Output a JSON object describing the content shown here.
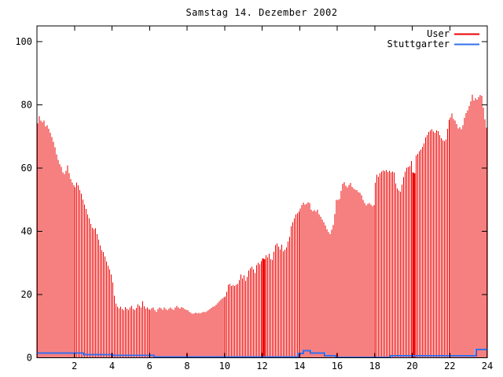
{
  "chart_data": {
    "type": "bar",
    "title": "Samstag 14. Dezember 2002",
    "xlabel": "",
    "ylabel": "",
    "xlim": [
      0,
      24
    ],
    "ylim": [
      0,
      105
    ],
    "x_ticks": [
      2,
      4,
      6,
      8,
      10,
      12,
      14,
      16,
      18,
      20,
      22,
      24
    ],
    "y_ticks": [
      0,
      20,
      40,
      60,
      80,
      100
    ],
    "grid": false,
    "legend_position": "top-right",
    "axis_color": "#000000",
    "series": [
      {
        "name": "User",
        "style": "impulses",
        "color": "#ee0000",
        "interval_minutes": 5,
        "values": [
          74.2,
          76.4,
          75.1,
          74.6,
          75.0,
          73.2,
          73.6,
          72.4,
          71.2,
          69.8,
          68.4,
          66.6,
          64.4,
          62.6,
          61.2,
          60.4,
          58.6,
          58.1,
          59.2,
          60.9,
          58.4,
          56.6,
          55.4,
          54.6,
          53.9,
          55.4,
          54.6,
          53.1,
          51.9,
          50.1,
          48.4,
          47.1,
          45.4,
          44.1,
          42.4,
          41.1,
          40.6,
          41.0,
          39.1,
          37.4,
          35.6,
          34.1,
          33.4,
          32.1,
          30.4,
          29.1,
          27.9,
          26.4,
          23.8,
          19.6,
          17.1,
          16.2,
          15.6,
          16.1,
          15.4,
          15.0,
          16.0,
          15.5,
          15.1,
          15.9,
          16.4,
          15.4,
          15.1,
          15.8,
          16.9,
          16.4,
          15.9,
          17.9,
          16.3,
          15.5,
          15.9,
          15.4,
          15.1,
          15.6,
          15.9,
          15.0,
          14.6,
          15.4,
          15.9,
          15.6,
          15.1,
          15.9,
          15.4,
          15.0,
          15.5,
          15.9,
          15.4,
          15.1,
          15.9,
          16.4,
          15.9,
          15.5,
          16.0,
          15.8,
          15.4,
          15.2,
          15.0,
          14.6,
          14.2,
          13.9,
          14.1,
          14.3,
          14.0,
          14.2,
          14.0,
          14.3,
          14.5,
          14.4,
          14.7,
          15.0,
          15.4,
          15.8,
          16.1,
          16.3,
          16.8,
          17.3,
          17.9,
          18.4,
          18.8,
          19.1,
          19.4,
          20.9,
          23.1,
          23.4,
          22.8,
          23.0,
          22.7,
          23.1,
          23.4,
          24.6,
          26.3,
          25.1,
          26.1,
          24.3,
          25.6,
          27.6,
          28.3,
          28.8,
          27.9,
          26.8,
          29.3,
          30.1,
          29.6,
          30.6,
          31.4,
          31.2,
          32.4,
          31.8,
          32.9,
          31.2,
          30.9,
          33.6,
          35.7,
          36.1,
          35.2,
          34.3,
          35.8,
          33.7,
          34.2,
          34.9,
          36.8,
          38.3,
          41.6,
          42.9,
          44.1,
          45.3,
          45.7,
          46.2,
          47.2,
          48.3,
          49.1,
          48.4,
          48.7,
          49.2,
          48.9,
          46.9,
          46.4,
          46.7,
          46.2,
          46.9,
          45.4,
          44.6,
          43.7,
          42.9,
          41.9,
          40.6,
          39.8,
          39.2,
          40.5,
          42.0,
          45.5,
          50.0,
          49.9,
          50.2,
          52.8,
          55.0,
          55.6,
          54.4,
          53.9,
          54.7,
          55.3,
          54.1,
          53.6,
          53.2,
          53.0,
          52.4,
          52.2,
          51.4,
          49.9,
          48.9,
          48.2,
          48.7,
          49.0,
          48.4,
          48.0,
          48.3,
          55.4,
          57.9,
          57.3,
          58.4,
          58.9,
          59.3,
          59.0,
          59.4,
          58.8,
          59.1,
          58.6,
          58.9,
          58.7,
          55.2,
          53.6,
          52.9,
          52.6,
          54.8,
          57.2,
          58.9,
          60.1,
          60.4,
          60.7,
          62.3,
          58.6,
          58.4,
          64.0,
          64.5,
          65.3,
          65.8,
          66.7,
          67.9,
          69.7,
          70.4,
          71.5,
          71.9,
          72.3,
          71.6,
          71.2,
          71.9,
          71.7,
          70.4,
          69.4,
          68.9,
          68.6,
          69.1,
          72.4,
          75.3,
          76.1,
          77.3,
          75.6,
          75.0,
          73.9,
          72.6,
          72.9,
          72.3,
          73.6,
          75.9,
          77.4,
          78.3,
          79.6,
          81.2,
          83.3,
          81.4,
          82.1,
          81.7,
          82.5,
          83.1,
          82.9,
          79.2,
          75.4,
          72.8
        ],
        "emphasis_indices": [
          144,
          145,
          240,
          241
        ]
      },
      {
        "name": "Stuttgarter",
        "style": "steps",
        "color": "#3370ee",
        "points": [
          [
            0,
            1.5
          ],
          [
            2.5,
            1.0
          ],
          [
            4.05,
            0.8
          ],
          [
            6.25,
            0.25
          ],
          [
            13.9,
            1.4
          ],
          [
            14.2,
            2.2
          ],
          [
            14.6,
            1.5
          ],
          [
            15.35,
            0.6
          ],
          [
            15.92,
            0.1
          ],
          [
            18.85,
            0.65
          ],
          [
            23.4,
            2.6
          ],
          [
            24,
            2.6
          ]
        ]
      }
    ]
  }
}
